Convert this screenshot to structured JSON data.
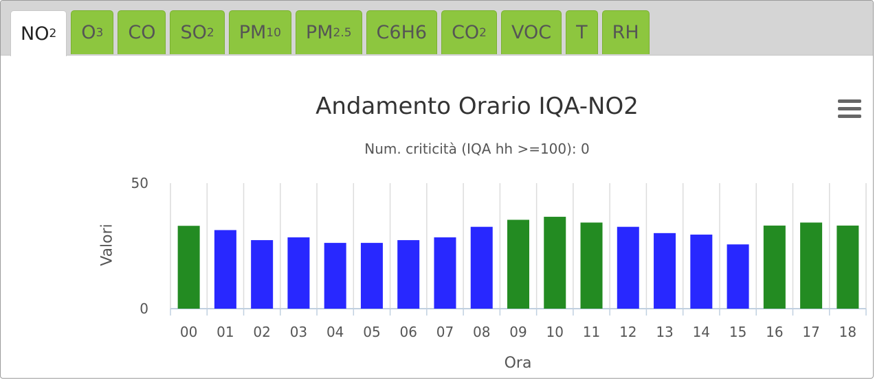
{
  "tabs": [
    {
      "base": "NO",
      "sub": "2",
      "active": true
    },
    {
      "base": "O",
      "sub": "3",
      "active": false
    },
    {
      "base": "CO",
      "sub": "",
      "active": false
    },
    {
      "base": "SO",
      "sub": "2",
      "active": false
    },
    {
      "base": "PM",
      "sub": "10",
      "active": false
    },
    {
      "base": "PM",
      "sub": "2.5",
      "active": false
    },
    {
      "base": "C6H6",
      "sub": "",
      "active": false
    },
    {
      "base": "CO",
      "sub": "2",
      "active": false
    },
    {
      "base": "VOC",
      "sub": "",
      "active": false
    },
    {
      "base": "T",
      "sub": "",
      "active": false
    },
    {
      "base": "RH",
      "sub": "",
      "active": false
    }
  ],
  "menu_icon": "hamburger-menu-icon",
  "chart_data": {
    "type": "bar",
    "title": "Andamento Orario IQA-NO2",
    "subtitle": "Num. criticità (IQA hh >=100): 0",
    "xlabel": "Ora",
    "ylabel": "Valori",
    "ylim": [
      0,
      50
    ],
    "yticks": [
      "0",
      "50"
    ],
    "categories": [
      "00",
      "01",
      "02",
      "03",
      "04",
      "05",
      "06",
      "07",
      "08",
      "09",
      "10",
      "11",
      "12",
      "13",
      "14",
      "15",
      "16",
      "17",
      "18"
    ],
    "values": [
      33,
      31.3,
      27.3,
      28.4,
      26.2,
      26.2,
      27.3,
      28.4,
      32.6,
      35.4,
      36.6,
      34.3,
      32.6,
      30.1,
      29.5,
      25.6,
      33.1,
      34.3,
      33.1
    ],
    "bar_colors": [
      "#238b22",
      "#2828ff",
      "#2828ff",
      "#2828ff",
      "#2828ff",
      "#2828ff",
      "#2828ff",
      "#2828ff",
      "#2828ff",
      "#238b22",
      "#238b22",
      "#238b22",
      "#2828ff",
      "#2828ff",
      "#2828ff",
      "#2828ff",
      "#238b22",
      "#238b22",
      "#238b22"
    ],
    "grid": "vertical",
    "legend": "none"
  },
  "colors": {
    "tab_inactive": "#8dc63f",
    "tab_active": "#ffffff",
    "good": "#238b22",
    "moderate": "#2828ff"
  }
}
